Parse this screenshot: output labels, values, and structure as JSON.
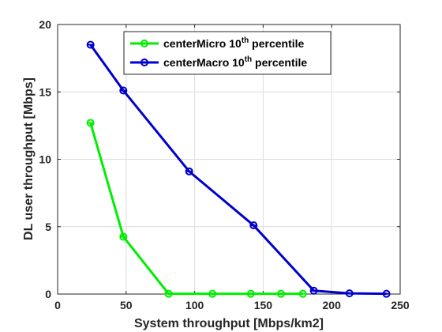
{
  "chart_data": {
    "type": "line",
    "xlabel": "System throughput [Mbps/km2]",
    "ylabel": "DL user throughput [Mbps]",
    "xlim": [
      0,
      250
    ],
    "ylim": [
      0,
      20
    ],
    "xticks": [
      "0",
      "50",
      "100",
      "150",
      "200",
      "250"
    ],
    "yticks": [
      "0",
      "5",
      "10",
      "15",
      "20"
    ],
    "grid": true,
    "legend_position": "top",
    "series": [
      {
        "name": "centerMicro 10th percentile",
        "legend_base": "centerMicro 10",
        "legend_sup": "th",
        "legend_tail": " percentile",
        "color": "#00ee00",
        "x": [
          24,
          48,
          81,
          113,
          141,
          163,
          179
        ],
        "y": [
          12.7,
          4.25,
          0.02,
          0.02,
          0.02,
          0.02,
          0.02
        ]
      },
      {
        "name": "centerMacro 10th percentile",
        "legend_base": "centerMacro 10",
        "legend_sup": "th",
        "legend_tail": " percentile",
        "color": "#0000cc",
        "x": [
          24,
          48,
          96,
          143,
          187,
          213,
          240
        ],
        "y": [
          18.5,
          15.1,
          9.1,
          5.1,
          0.25,
          0.05,
          0.02
        ]
      }
    ]
  }
}
